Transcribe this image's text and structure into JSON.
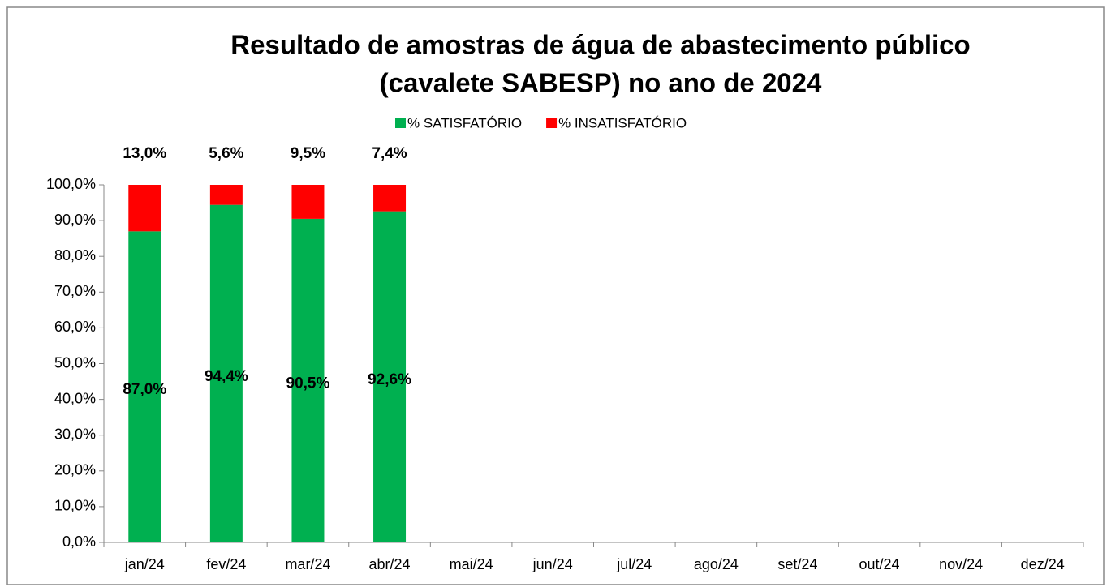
{
  "chart_data": {
    "type": "stacked_bar",
    "title": [
      "Resultado de amostras de água de abastecimento público",
      "(cavalete SABESP) no ano de 2024"
    ],
    "categories": [
      "jan/24",
      "fev/24",
      "mar/24",
      "abr/24",
      "mai/24",
      "jun/24",
      "jul/24",
      "ago/24",
      "set/24",
      "out/24",
      "nov/24",
      "dez/24"
    ],
    "series": [
      {
        "name": "% SATISFATÓRIO",
        "color": "#00b050",
        "values": [
          87.0,
          94.4,
          90.5,
          92.6,
          null,
          null,
          null,
          null,
          null,
          null,
          null,
          null
        ],
        "value_labels": [
          "87,0%",
          "94,4%",
          "90,5%",
          "92,6%",
          null,
          null,
          null,
          null,
          null,
          null,
          null,
          null
        ]
      },
      {
        "name": "% INSATISFATÓRIO",
        "color": "#ff0000",
        "values": [
          13.0,
          5.6,
          9.5,
          7.4,
          null,
          null,
          null,
          null,
          null,
          null,
          null,
          null
        ],
        "value_labels": [
          "13,0%",
          "5,6%",
          "9,5%",
          "7,4%",
          null,
          null,
          null,
          null,
          null,
          null,
          null,
          null
        ]
      }
    ],
    "ylim": [
      0,
      100
    ],
    "yticks": [
      {
        "value": 0,
        "label": "0,0%"
      },
      {
        "value": 10,
        "label": "10,0%"
      },
      {
        "value": 20,
        "label": "20,0%"
      },
      {
        "value": 30,
        "label": "30,0%"
      },
      {
        "value": 40,
        "label": "40,0%"
      },
      {
        "value": 50,
        "label": "50,0%"
      },
      {
        "value": 60,
        "label": "60,0%"
      },
      {
        "value": 70,
        "label": "70,0%"
      },
      {
        "value": 80,
        "label": "80,0%"
      },
      {
        "value": 90,
        "label": "90,0%"
      },
      {
        "value": 100,
        "label": "100,0%"
      }
    ],
    "legend": "top",
    "grid": false
  }
}
